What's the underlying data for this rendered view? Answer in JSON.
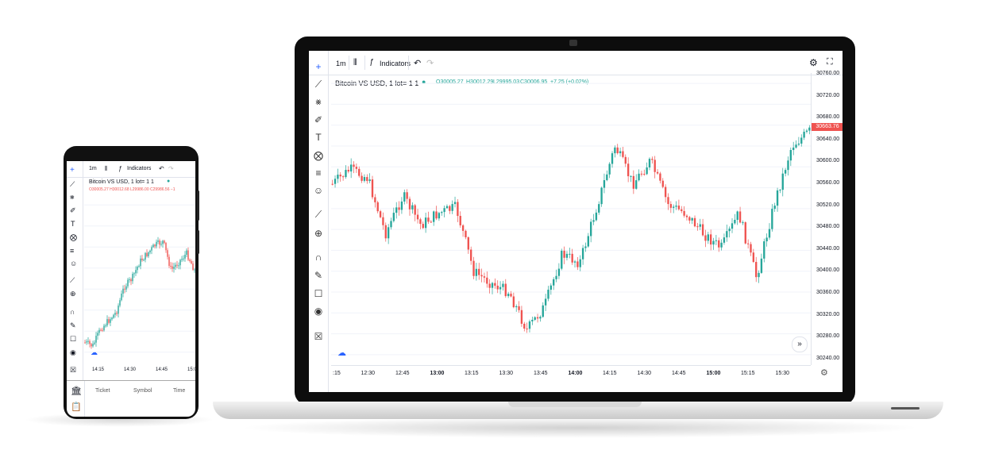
{
  "symbol_title": "Bitcoin VS USD, 1 lot= 1  1",
  "toolbar": {
    "interval": "1m",
    "indicators_label": "Indicators"
  },
  "laptop": {
    "ohlc": {
      "open": "O30005.27",
      "high": "H30012.29",
      "low": "L29995.03",
      "close": "C30006.95",
      "change": "+7.25 (+0.02%)"
    },
    "last_price": "30663.76",
    "price_ticks": [
      "30760.00",
      "30720.00",
      "30680.00",
      "30640.00",
      "30600.00",
      "30560.00",
      "30520.00",
      "30480.00",
      "30440.00",
      "30400.00",
      "30360.00",
      "30320.00",
      "30280.00",
      "30240.00"
    ],
    "time_ticks": [
      ":15",
      "12:30",
      "12:45",
      "13:00",
      "13:15",
      "13:30",
      "13:45",
      "14:00",
      "14:15",
      "14:30",
      "14:45",
      "15:00",
      "15:15",
      "15:30"
    ],
    "bold_times": [
      "13:00",
      "14:00",
      "15:00"
    ]
  },
  "phone": {
    "ohlc_line": "O30005.27  H30012.68  L29986.00  C29986.56  −1",
    "time_ticks": [
      "14:15",
      "14:30",
      "14:45",
      "15:00"
    ],
    "tabs": {
      "ticket": "Ticket",
      "symbol": "Symbol",
      "time": "Time"
    }
  },
  "colors": {
    "up": "#26a69a",
    "down": "#ef5350",
    "grid": "#f0f3fa",
    "accent": "#2962ff"
  },
  "icons": [
    "crosshair-icon",
    "trend-line-icon",
    "fib-icon",
    "brush-icon",
    "text-icon",
    "pattern-icon",
    "measure-icon",
    "emoji-icon",
    "ruler-icon",
    "zoom-in-icon",
    "magnet-icon",
    "lock-drawing-icon",
    "lock-icon",
    "eye-icon",
    "trash-icon",
    "gear-icon",
    "fullscreen-icon",
    "undo-icon",
    "redo-icon",
    "cloud-icon",
    "chevron-right-icon"
  ]
}
